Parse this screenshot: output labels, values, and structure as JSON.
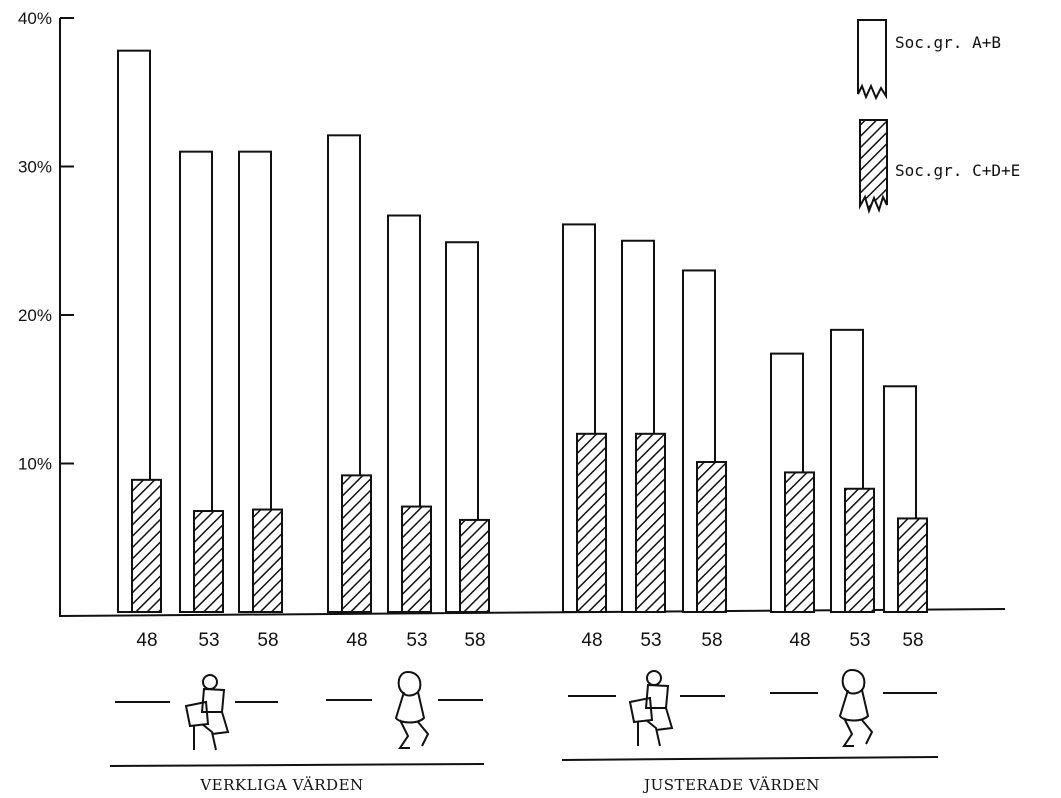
{
  "chart_data": {
    "type": "bar",
    "title": "",
    "xlabel": "",
    "ylabel": "",
    "ylim": [
      0,
      40
    ],
    "y_ticks": [
      "10%",
      "20%",
      "30%",
      "40%"
    ],
    "y_tick_values": [
      10,
      20,
      30,
      40
    ],
    "grid": false,
    "legend_position": "top-right",
    "groups": [
      {
        "label": "VERKLIGA VÄRDEN",
        "subgroups": [
          "male-reader-figure",
          "female-figure"
        ]
      },
      {
        "label": "JUSTERADE VÄRDEN",
        "subgroups": [
          "male-reader-figure",
          "female-figure"
        ]
      }
    ],
    "categories": [
      "48",
      "53",
      "58",
      "48",
      "53",
      "58",
      "48",
      "53",
      "58",
      "48",
      "53",
      "58"
    ],
    "series": [
      {
        "name": "Soc.gr. A+B",
        "pattern": "open",
        "values": [
          37.8,
          31.0,
          31.0,
          32.1,
          26.7,
          24.9,
          26.1,
          25.0,
          23.0,
          17.4,
          19.0,
          15.2
        ]
      },
      {
        "name": "Soc.gr. C+D+E",
        "pattern": "hatched",
        "values": [
          8.9,
          6.8,
          6.9,
          9.2,
          7.1,
          6.2,
          12.0,
          12.0,
          10.1,
          9.4,
          8.3,
          6.3
        ]
      }
    ],
    "colors": {
      "ink": "#111111",
      "paper": "#ffffff"
    }
  },
  "icons": [
    "male-reader-icon",
    "female-seated-icon",
    "male-reader-icon",
    "female-seated-icon"
  ]
}
